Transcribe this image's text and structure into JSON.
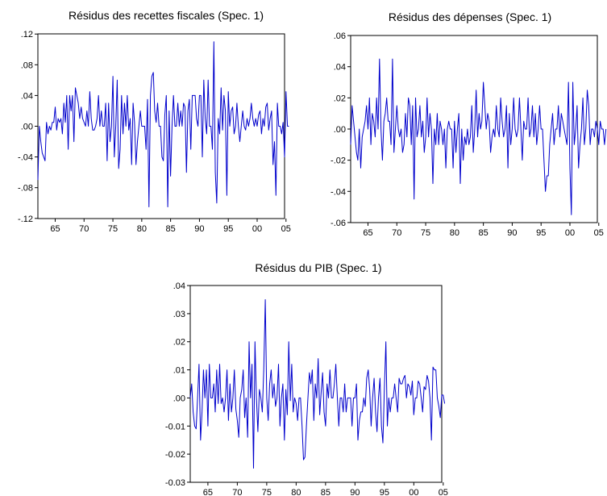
{
  "chart_data": [
    {
      "type": "line",
      "title": "Résidus des recettes fiscales (Spec. 1)",
      "xlabel": "",
      "ylabel": "",
      "xlim": [
        1962.0,
        2004.75
      ],
      "ylim": [
        -0.12,
        0.12
      ],
      "x_tick_labels": [
        "65",
        "70",
        "75",
        "80",
        "85",
        "90",
        "95",
        "00",
        "05"
      ],
      "y_tick_labels": [
        ".12",
        ".08",
        ".04",
        ".00",
        "-.04",
        "-.08",
        "-.12"
      ],
      "grid": false,
      "x_start": 1962.0,
      "x_step": 0.25,
      "values": [
        -0.07,
        0.0,
        -0.02,
        -0.035,
        -0.04,
        -0.045,
        0.005,
        -0.01,
        0.0,
        -0.005,
        0.005,
        0.005,
        0.025,
        -0.005,
        0.01,
        0.005,
        0.01,
        -0.01,
        0.03,
        0.005,
        0.04,
        -0.03,
        0.04,
        0.02,
        0.04,
        -0.02,
        0.05,
        0.04,
        0.03,
        0.01,
        0.025,
        0.01,
        0.005,
        0.0,
        0.02,
        0.0,
        0.045,
        0.01,
        -0.005,
        -0.005,
        0.0,
        0.01,
        0.04,
        0.0,
        0.02,
        0.0,
        0.0,
        0.03,
        -0.045,
        0.03,
        -0.02,
        0.0,
        0.065,
        -0.04,
        0.0,
        0.06,
        -0.055,
        -0.03,
        0.04,
        -0.01,
        0.03,
        0.0,
        0.04,
        -0.005,
        0.01,
        -0.05,
        0.03,
        0.005,
        -0.05,
        -0.02,
        0.0,
        0.02,
        0.0,
        0.0,
        0.0,
        -0.03,
        0.035,
        -0.105,
        0.04,
        0.065,
        0.07,
        0.02,
        0.005,
        0.03,
        0.0,
        0.0,
        -0.04,
        -0.045,
        0.015,
        0.04,
        -0.105,
        0.02,
        -0.065,
        0.0,
        0.04,
        0.0,
        0.0,
        0.03,
        0.0,
        0.02,
        0.0,
        0.03,
        0.025,
        -0.06,
        0.02,
        0.035,
        -0.03,
        0.04,
        0.04,
        0.04,
        0.01,
        0.0,
        0.04,
        0.04,
        -0.04,
        0.06,
        0.01,
        -0.01,
        0.06,
        0.0,
        0.0,
        -0.03,
        0.11,
        -0.06,
        -0.1,
        0.01,
        -0.01,
        0.05,
        -0.005,
        0.04,
        0.02,
        -0.09,
        0.045,
        0.0,
        0.02,
        0.025,
        -0.01,
        0.0,
        0.03,
        0.0,
        -0.02,
        0.0,
        0.02,
        0.0,
        -0.005,
        0.01,
        0.0,
        0.01,
        0.03,
        0.01,
        0.0,
        0.01,
        0.0,
        0.015,
        0.02,
        -0.01,
        0.01,
        0.0,
        0.025,
        0.03,
        -0.005,
        0.01,
        0.02,
        -0.05,
        -0.02,
        -0.09,
        0.03,
        0.0,
        0.0,
        -0.01,
        0.005,
        -0.04,
        0.045,
        0.0,
        0.0
      ]
    },
    {
      "type": "line",
      "title": "Résidus des dépenses (Spec. 1)",
      "xlabel": "",
      "ylabel": "",
      "xlim": [
        1962.0,
        2004.75
      ],
      "ylim": [
        -0.06,
        0.06
      ],
      "x_tick_labels": [
        "65",
        "70",
        "75",
        "80",
        "85",
        "90",
        "95",
        "00",
        "05"
      ],
      "y_tick_labels": [
        ".06",
        ".04",
        ".02",
        ".00",
        "-.02",
        "-.04",
        "-.06"
      ],
      "grid": false,
      "x_start": 1962.0,
      "x_step": 0.25,
      "values": [
        -0.01,
        0.015,
        0.005,
        -0.005,
        -0.015,
        -0.02,
        0.0,
        -0.025,
        -0.005,
        0.0,
        0.005,
        0.015,
        0.0,
        0.02,
        -0.01,
        0.01,
        0.005,
        -0.005,
        0.02,
        0.0,
        0.045,
        0.0,
        -0.02,
        0.005,
        0.01,
        0.02,
        0.005,
        0.005,
        -0.01,
        0.045,
        -0.015,
        0.0,
        0.015,
        0.0,
        -0.005,
        0.0,
        -0.015,
        -0.01,
        0.01,
        -0.005,
        0.02,
        0.015,
        -0.01,
        0.015,
        -0.045,
        0.02,
        -0.005,
        0.0,
        0.015,
        -0.005,
        0.005,
        -0.015,
        -0.005,
        0.02,
        -0.005,
        0.01,
        0.0,
        -0.035,
        0.0,
        -0.01,
        0.01,
        -0.01,
        0.005,
        0.0,
        -0.01,
        0.0,
        -0.025,
        0.0,
        0.005,
        0.0,
        0.0,
        -0.025,
        0.005,
        -0.015,
        0.0,
        0.01,
        -0.035,
        0.0,
        -0.02,
        -0.005,
        -0.01,
        0.0,
        -0.01,
        -0.005,
        0.015,
        -0.015,
        0.0,
        0.025,
        -0.005,
        0.01,
        0.0,
        0.005,
        0.03,
        0.015,
        0.0,
        0.01,
        0.005,
        -0.015,
        -0.005,
        0.0,
        -0.005,
        0.015,
        0.0,
        -0.005,
        0.02,
        0.005,
        -0.005,
        0.0,
        0.015,
        -0.025,
        0.01,
        -0.01,
        0.0,
        0.02,
        0.0,
        -0.005,
        0.0,
        0.02,
        0.0,
        -0.02,
        0.005,
        0.0,
        0.0,
        0.02,
        -0.005,
        0.0,
        0.015,
        -0.005,
        0.01,
        -0.01,
        0.0,
        0.015,
        0.0,
        0.0,
        -0.02,
        -0.04,
        -0.03,
        -0.03,
        -0.01,
        0.0,
        0.01,
        -0.01,
        0.0,
        0.0,
        0.015,
        -0.005,
        0.01,
        0.005,
        0.0,
        -0.005,
        -0.01,
        0.03,
        -0.025,
        -0.055,
        0.03,
        -0.01,
        0.0,
        0.015,
        -0.025,
        -0.01,
        0.0,
        0.02,
        -0.01,
        0.0,
        0.025,
        0.015,
        -0.01,
        0.0,
        0.0,
        -0.005,
        0.005,
        0.0,
        -0.01,
        0.005,
        0.0,
        0.0,
        -0.01,
        0.0
      ]
    },
    {
      "type": "line",
      "title": "Résidus du PIB (Spec. 1)",
      "xlabel": "",
      "ylabel": "",
      "xlim": [
        1962.0,
        2004.75
      ],
      "ylim": [
        -0.03,
        0.04
      ],
      "x_tick_labels": [
        "65",
        "70",
        "75",
        "80",
        "85",
        "90",
        "95",
        "00",
        "05"
      ],
      "y_tick_labels": [
        ".04",
        ".03",
        ".02",
        ".01",
        ".00",
        "-0.01",
        "-0.02",
        "-0.03"
      ],
      "grid": false,
      "x_start": 1962.0,
      "x_step": 0.25,
      "values": [
        0.0,
        0.005,
        -0.005,
        -0.01,
        -0.011,
        0.0,
        0.012,
        -0.015,
        -0.005,
        0.01,
        0.0,
        0.01,
        -0.01,
        0.012,
        0.0,
        0.0,
        0.005,
        -0.005,
        0.01,
        -0.002,
        0.012,
        -0.002,
        0.0,
        -0.005,
        0.0,
        0.01,
        -0.008,
        0.005,
        -0.005,
        0.0,
        0.01,
        -0.004,
        -0.008,
        -0.014,
        0.0,
        0.003,
        0.01,
        -0.007,
        0.0,
        -0.014,
        0.02,
        0.0,
        0.012,
        -0.025,
        0.02,
        0.0,
        -0.012,
        0.003,
        0.0,
        -0.005,
        0.01,
        0.035,
        0.0,
        -0.008,
        0.005,
        0.01,
        0.0,
        0.005,
        -0.003,
        0.0,
        0.012,
        -0.01,
        0.0,
        0.005,
        -0.015,
        0.003,
        -0.006,
        0.02,
        -0.001,
        0.012,
        -0.005,
        0.0,
        -0.002,
        -0.008,
        0.0,
        0.0,
        -0.01,
        -0.022,
        -0.021,
        -0.01,
        0.0,
        0.009,
        0.005,
        0.01,
        -0.008,
        0.005,
        0.0,
        0.014,
        -0.006,
        0.002,
        0.009,
        -0.005,
        -0.01,
        0.005,
        0.0,
        0.01,
        0.0,
        0.0,
        0.005,
        0.012,
        0.0,
        -0.01,
        0.0,
        0.0,
        -0.005,
        0.005,
        -0.005,
        0.0,
        0.0,
        0.0,
        -0.01,
        0.0,
        0.0,
        0.005,
        -0.015,
        -0.008,
        -0.005,
        -0.005,
        0.0,
        -0.003,
        0.007,
        0.01,
        0.003,
        -0.01,
        0.0,
        0.007,
        -0.005,
        -0.012,
        0.0,
        0.007,
        -0.01,
        -0.016,
        0.003,
        0.02,
        -0.01,
        0.0,
        -0.005,
        0.0,
        0.0,
        0.005,
        0.0,
        -0.005,
        0.007,
        0.005,
        0.005,
        0.007,
        0.008,
        0.0,
        0.005,
        0.004,
        0.001,
        0.006,
        -0.006,
        0.0,
        0.0,
        0.006,
        0.005,
        0.0,
        -0.005,
        0.004,
        0.003,
        0.008,
        0.006,
        0.0,
        -0.015,
        0.011,
        0.01,
        0.01,
        0.0,
        -0.003,
        -0.007,
        0.001,
        0.001,
        -0.002
      ]
    }
  ]
}
